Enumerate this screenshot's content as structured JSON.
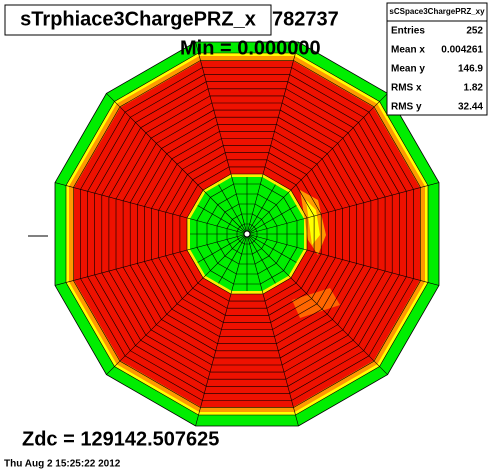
{
  "title": "sTrphiace3ChargePRZ_x",
  "hidden_text": "782737",
  "min_label": "Min = 0.000000",
  "stats": {
    "title": "sCSpace3ChargePRZ_xy",
    "rows": [
      [
        "Entries",
        "252"
      ],
      [
        "Mean x",
        "0.004261"
      ],
      [
        "Mean y",
        "146.9"
      ],
      [
        "RMS x",
        "1.82"
      ],
      [
        "RMS y",
        "32.44"
      ]
    ]
  },
  "zdc_label": "Zdc = 129142.507625",
  "timestamp": "Thu Aug  2 15:25:22 2012"
}
